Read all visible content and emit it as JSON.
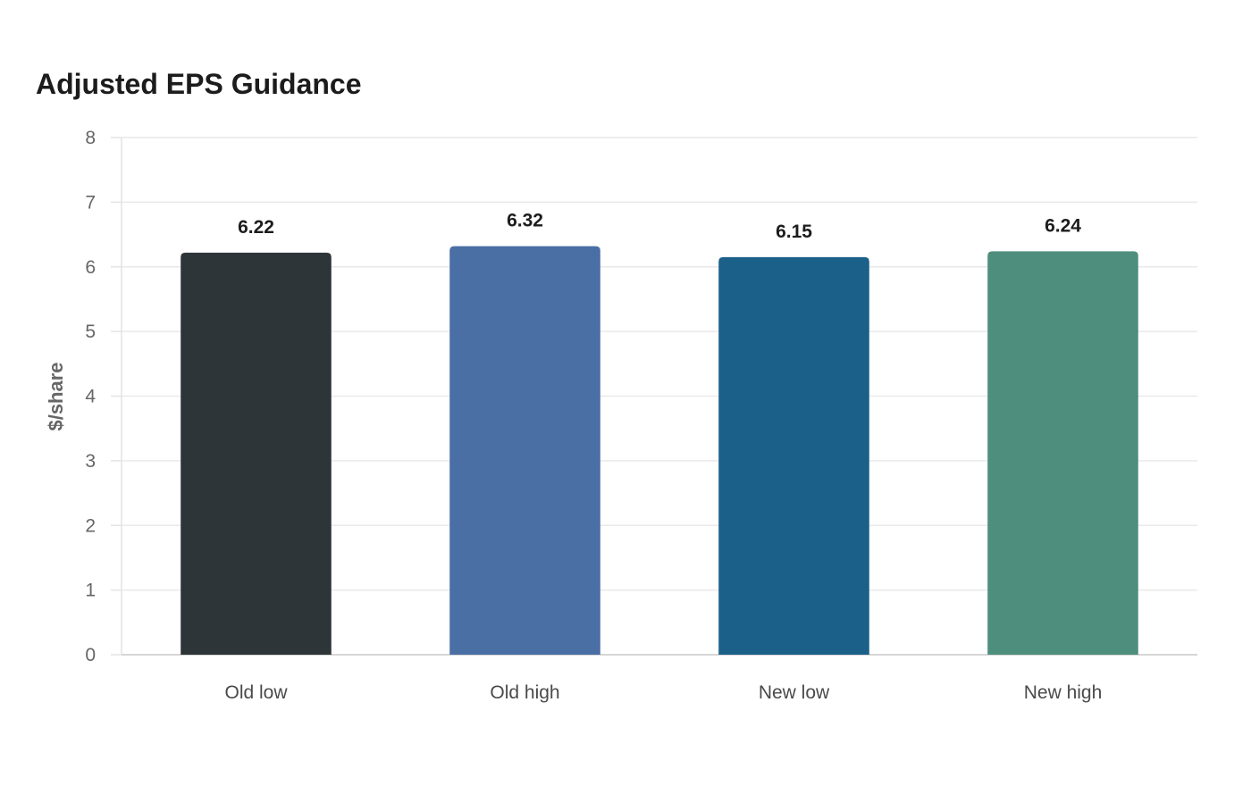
{
  "chart_data": {
    "type": "bar",
    "title": "Adjusted EPS Guidance",
    "ylabel": "$/share",
    "xlabel": "",
    "categories": [
      "Old low",
      "Old high",
      "New low",
      "New high"
    ],
    "values": [
      6.22,
      6.32,
      6.15,
      6.24
    ],
    "value_labels": [
      "6.22",
      "6.32",
      "6.15",
      "6.24"
    ],
    "ylim": [
      0,
      8
    ],
    "yticks": [
      0,
      1,
      2,
      3,
      4,
      5,
      6,
      7,
      8
    ],
    "grid": true,
    "legend": "none",
    "colors": [
      "#2e3538",
      "#4a6fa5",
      "#1b6089",
      "#4e8e7c"
    ]
  }
}
